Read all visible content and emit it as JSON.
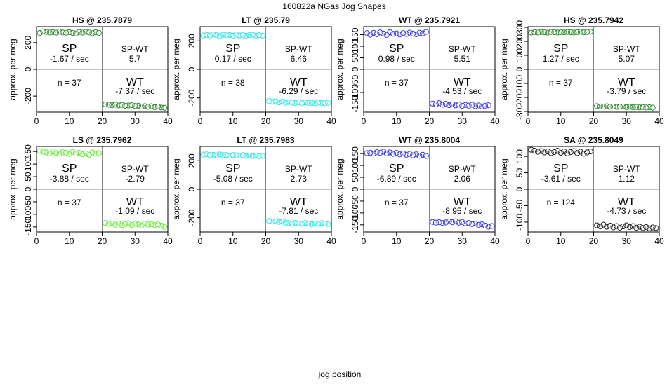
{
  "page": {
    "title": "160822a   NGas Jog Shapes",
    "xlabel": "jog position"
  },
  "chart_data": [
    {
      "type": "scatter",
      "title": "HS @ 235.7879",
      "ylabel": "approx. per meg",
      "xlim": [
        0,
        40
      ],
      "ylim": [
        -320,
        320
      ],
      "xticks": [
        0,
        10,
        20,
        30,
        40
      ],
      "yticks": [
        -200,
        0,
        200
      ],
      "color": "#2e8b2e",
      "sp_label": "SP",
      "sp_rate": "-1.67 / sec",
      "spwt_label": "SP-WT",
      "spwt_value": "5.7",
      "n_label": "n = 37",
      "wt_label": "WT",
      "wt_rate": "-7.37 / sec",
      "x": [
        1,
        2,
        3,
        4,
        5,
        6,
        7,
        8,
        9,
        10,
        11,
        12,
        13,
        14,
        15,
        16,
        17,
        18,
        19,
        21,
        22,
        23,
        24,
        25,
        26,
        27,
        28,
        29,
        30,
        31,
        32,
        33,
        34,
        35,
        36,
        37,
        38,
        39
      ],
      "y": [
        272,
        285,
        280,
        276,
        278,
        275,
        282,
        276,
        274,
        279,
        273,
        269,
        280,
        275,
        281,
        276,
        271,
        278,
        273,
        -262,
        -265,
        -268,
        -264,
        -270,
        -266,
        -272,
        -270,
        -268,
        -274,
        -272,
        -278,
        -275,
        -280,
        -276,
        -283,
        -278,
        -285,
        -287
      ]
    },
    {
      "type": "scatter",
      "title": "LT @ 235.79",
      "ylabel": "approx. per meg",
      "xlim": [
        0,
        40
      ],
      "ylim": [
        -300,
        300
      ],
      "xticks": [
        0,
        10,
        20,
        30,
        40
      ],
      "yticks": [
        -200,
        0,
        200
      ],
      "color": "#33e8e8",
      "sp_label": "SP",
      "sp_rate": "0.17 / sec",
      "spwt_label": "SP-WT",
      "spwt_value": "6.46",
      "n_label": "n = 38",
      "wt_label": "WT",
      "wt_rate": "-6.29 / sec",
      "x": [
        1,
        2,
        3,
        4,
        5,
        6,
        7,
        8,
        9,
        10,
        11,
        12,
        13,
        14,
        15,
        16,
        17,
        18,
        19,
        21,
        22,
        23,
        24,
        25,
        26,
        27,
        28,
        29,
        30,
        31,
        32,
        33,
        34,
        35,
        36,
        37,
        38,
        39
      ],
      "y": [
        238,
        242,
        237,
        245,
        240,
        236,
        243,
        239,
        241,
        237,
        244,
        238,
        242,
        236,
        240,
        243,
        238,
        241,
        237,
        -222,
        -228,
        -224,
        -232,
        -226,
        -235,
        -229,
        -233,
        -236,
        -230,
        -238,
        -232,
        -236,
        -234,
        -239,
        -233,
        -236,
        -238,
        -235
      ]
    },
    {
      "type": "scatter",
      "title": "WT @ 235.7921",
      "ylabel": "approx. per meg",
      "xlim": [
        0,
        40
      ],
      "ylim": [
        -185,
        185
      ],
      "xticks": [
        0,
        10,
        20,
        30,
        40
      ],
      "yticks": [
        -150,
        -100,
        -50,
        0,
        50,
        100,
        150
      ],
      "color": "#3b3be0",
      "sp_label": "SP",
      "sp_rate": "0.98 / sec",
      "spwt_label": "SP-WT",
      "spwt_value": "5.51",
      "n_label": "n = 37",
      "wt_label": "WT",
      "wt_rate": "-4.53 / sec",
      "x": [
        1,
        2,
        3,
        4,
        5,
        6,
        7,
        8,
        9,
        10,
        11,
        12,
        13,
        14,
        15,
        16,
        17,
        18,
        19,
        21,
        22,
        23,
        24,
        25,
        26,
        27,
        28,
        29,
        30,
        31,
        32,
        33,
        34,
        35,
        36,
        37,
        38
      ],
      "y": [
        157,
        150,
        158,
        152,
        160,
        155,
        149,
        161,
        154,
        156,
        151,
        157,
        153,
        159,
        155,
        152,
        158,
        156,
        162,
        -148,
        -152,
        -146,
        -153,
        -149,
        -155,
        -151,
        -156,
        -152,
        -158,
        -154,
        -157,
        -153,
        -159,
        -156,
        -160,
        -157,
        -155
      ]
    },
    {
      "type": "scatter",
      "title": "HS @ 235.7942",
      "ylabel": "approx. per meg",
      "xlim": [
        0,
        40
      ],
      "ylim": [
        -305,
        305
      ],
      "xticks": [
        0,
        10,
        20,
        30,
        40
      ],
      "yticks": [
        -300,
        -200,
        -100,
        0,
        100,
        200,
        300
      ],
      "color": "#2e8b2e",
      "sp_label": "SP",
      "sp_rate": "1.27 / sec",
      "spwt_label": "SP-WT",
      "spwt_value": "5.07",
      "n_label": "n = 37",
      "wt_label": "WT",
      "wt_rate": "-3.79 / sec",
      "x": [
        1,
        2,
        3,
        4,
        5,
        6,
        7,
        8,
        9,
        10,
        11,
        12,
        13,
        14,
        15,
        16,
        17,
        18,
        19,
        21,
        22,
        23,
        24,
        25,
        26,
        27,
        28,
        29,
        30,
        31,
        32,
        33,
        34,
        35,
        36,
        37,
        38
      ],
      "y": [
        262,
        265,
        263,
        266,
        264,
        262,
        267,
        265,
        263,
        266,
        264,
        267,
        265,
        263,
        266,
        268,
        264,
        267,
        269,
        -262,
        -264,
        -266,
        -263,
        -267,
        -265,
        -268,
        -266,
        -264,
        -269,
        -267,
        -270,
        -268,
        -271,
        -269,
        -272,
        -270,
        -273
      ]
    },
    {
      "type": "scatter",
      "title": "LS @ 235.7962",
      "ylabel": "approx. per meg",
      "xlim": [
        0,
        40
      ],
      "ylim": [
        -170,
        170
      ],
      "xticks": [
        0,
        10,
        20,
        30,
        40
      ],
      "yticks": [
        -150,
        -100,
        -50,
        0,
        50,
        100,
        150
      ],
      "color": "#66ee33",
      "sp_label": "SP",
      "sp_rate": "-3.88 / sec",
      "spwt_label": "SP-WT",
      "spwt_value": "-2.79",
      "n_label": "n = 37",
      "wt_label": "WT",
      "wt_rate": "-1.09 / sec",
      "x": [
        1,
        2,
        3,
        4,
        5,
        6,
        7,
        8,
        9,
        10,
        11,
        12,
        13,
        14,
        15,
        16,
        17,
        18,
        19,
        21,
        22,
        23,
        24,
        25,
        26,
        27,
        28,
        29,
        30,
        31,
        32,
        33,
        34,
        35,
        36,
        37,
        38,
        39
      ],
      "y": [
        152,
        149,
        146,
        143,
        150,
        144,
        141,
        147,
        145,
        140,
        148,
        142,
        145,
        139,
        143,
        137,
        146,
        141,
        144,
        -134,
        -138,
        -136,
        -141,
        -137,
        -143,
        -139,
        -135,
        -142,
        -138,
        -140,
        -144,
        -137,
        -141,
        -139,
        -143,
        -140,
        -145,
        -150
      ]
    },
    {
      "type": "scatter",
      "title": "LT @ 235.7983",
      "ylabel": "approx. per meg",
      "xlim": [
        0,
        40
      ],
      "ylim": [
        -300,
        300
      ],
      "xticks": [
        0,
        10,
        20,
        30,
        40
      ],
      "yticks": [
        -200,
        0,
        200
      ],
      "color": "#33e8e8",
      "sp_label": "SP",
      "sp_rate": "-5.08 / sec",
      "spwt_label": "SP-WT",
      "spwt_value": "2.73",
      "n_label": "n = 37",
      "wt_label": "WT",
      "wt_rate": "-7.81 / sec",
      "x": [
        1,
        2,
        3,
        4,
        5,
        6,
        7,
        8,
        9,
        10,
        11,
        12,
        13,
        14,
        15,
        16,
        17,
        18,
        19,
        21,
        22,
        23,
        24,
        25,
        26,
        27,
        28,
        29,
        30,
        31,
        32,
        33,
        34,
        35,
        36,
        37,
        38,
        39
      ],
      "y": [
        243,
        245,
        240,
        242,
        238,
        244,
        239,
        241,
        236,
        240,
        238,
        235,
        239,
        233,
        237,
        232,
        236,
        230,
        234,
        -222,
        -226,
        -224,
        -230,
        -228,
        -234,
        -238,
        -242,
        -236,
        -240,
        -244,
        -238,
        -242,
        -246,
        -240,
        -244,
        -238,
        -242,
        -245
      ]
    },
    {
      "type": "scatter",
      "title": "WT @ 235.8004",
      "ylabel": "approx. per meg",
      "xlim": [
        0,
        40
      ],
      "ylim": [
        -180,
        180
      ],
      "xticks": [
        0,
        10,
        20,
        30,
        40
      ],
      "yticks": [
        -150,
        -100,
        -50,
        0,
        50,
        100,
        150
      ],
      "color": "#3b3be0",
      "sp_label": "SP",
      "sp_rate": "-6.89 / sec",
      "spwt_label": "SP-WT",
      "spwt_value": "2.06",
      "n_label": "n = 37",
      "wt_label": "WT",
      "wt_rate": "-8.95 / sec",
      "x": [
        1,
        2,
        3,
        4,
        5,
        6,
        7,
        8,
        9,
        10,
        11,
        12,
        13,
        14,
        15,
        16,
        17,
        18,
        19,
        21,
        22,
        23,
        24,
        25,
        26,
        27,
        28,
        29,
        30,
        31,
        32,
        33,
        34,
        35,
        36,
        37,
        38,
        39
      ],
      "y": [
        152,
        154,
        150,
        156,
        153,
        158,
        151,
        155,
        149,
        153,
        147,
        151,
        145,
        149,
        143,
        147,
        141,
        145,
        140,
        -138,
        -141,
        -139,
        -142,
        -140,
        -136,
        -139,
        -135,
        -141,
        -138,
        -144,
        -142,
        -147,
        -145,
        -150,
        -148,
        -153,
        -158,
        -155
      ]
    },
    {
      "type": "scatter",
      "title": "SA @ 235.8049",
      "ylabel": "approx. per meg",
      "xlim": [
        0,
        40
      ],
      "ylim": [
        -130,
        130
      ],
      "xticks": [
        0,
        10,
        20,
        30,
        40
      ],
      "yticks": [
        -100,
        -50,
        0,
        50,
        100
      ],
      "color": "#222222",
      "sp_label": "SP",
      "sp_rate": "-3.61 / sec",
      "spwt_label": "SP-WT",
      "spwt_value": "1.12",
      "n_label": "n = 124",
      "wt_label": "WT",
      "wt_rate": "-4.73 / sec",
      "x": [
        1,
        2,
        3,
        4,
        5,
        6,
        7,
        8,
        9,
        10,
        11,
        12,
        13,
        14,
        15,
        16,
        17,
        18,
        19,
        21,
        22,
        23,
        24,
        25,
        26,
        27,
        28,
        29,
        30,
        31,
        32,
        33,
        34,
        35,
        36,
        37,
        38,
        39
      ],
      "y": [
        120,
        117,
        114,
        116,
        112,
        115,
        110,
        113,
        117,
        111,
        115,
        109,
        113,
        116,
        110,
        114,
        108,
        112,
        115,
        -110,
        -113,
        -108,
        -114,
        -111,
        -116,
        -112,
        -117,
        -113,
        -110,
        -115,
        -112,
        -117,
        -114,
        -118,
        -115,
        -119,
        -116,
        -118
      ]
    }
  ]
}
